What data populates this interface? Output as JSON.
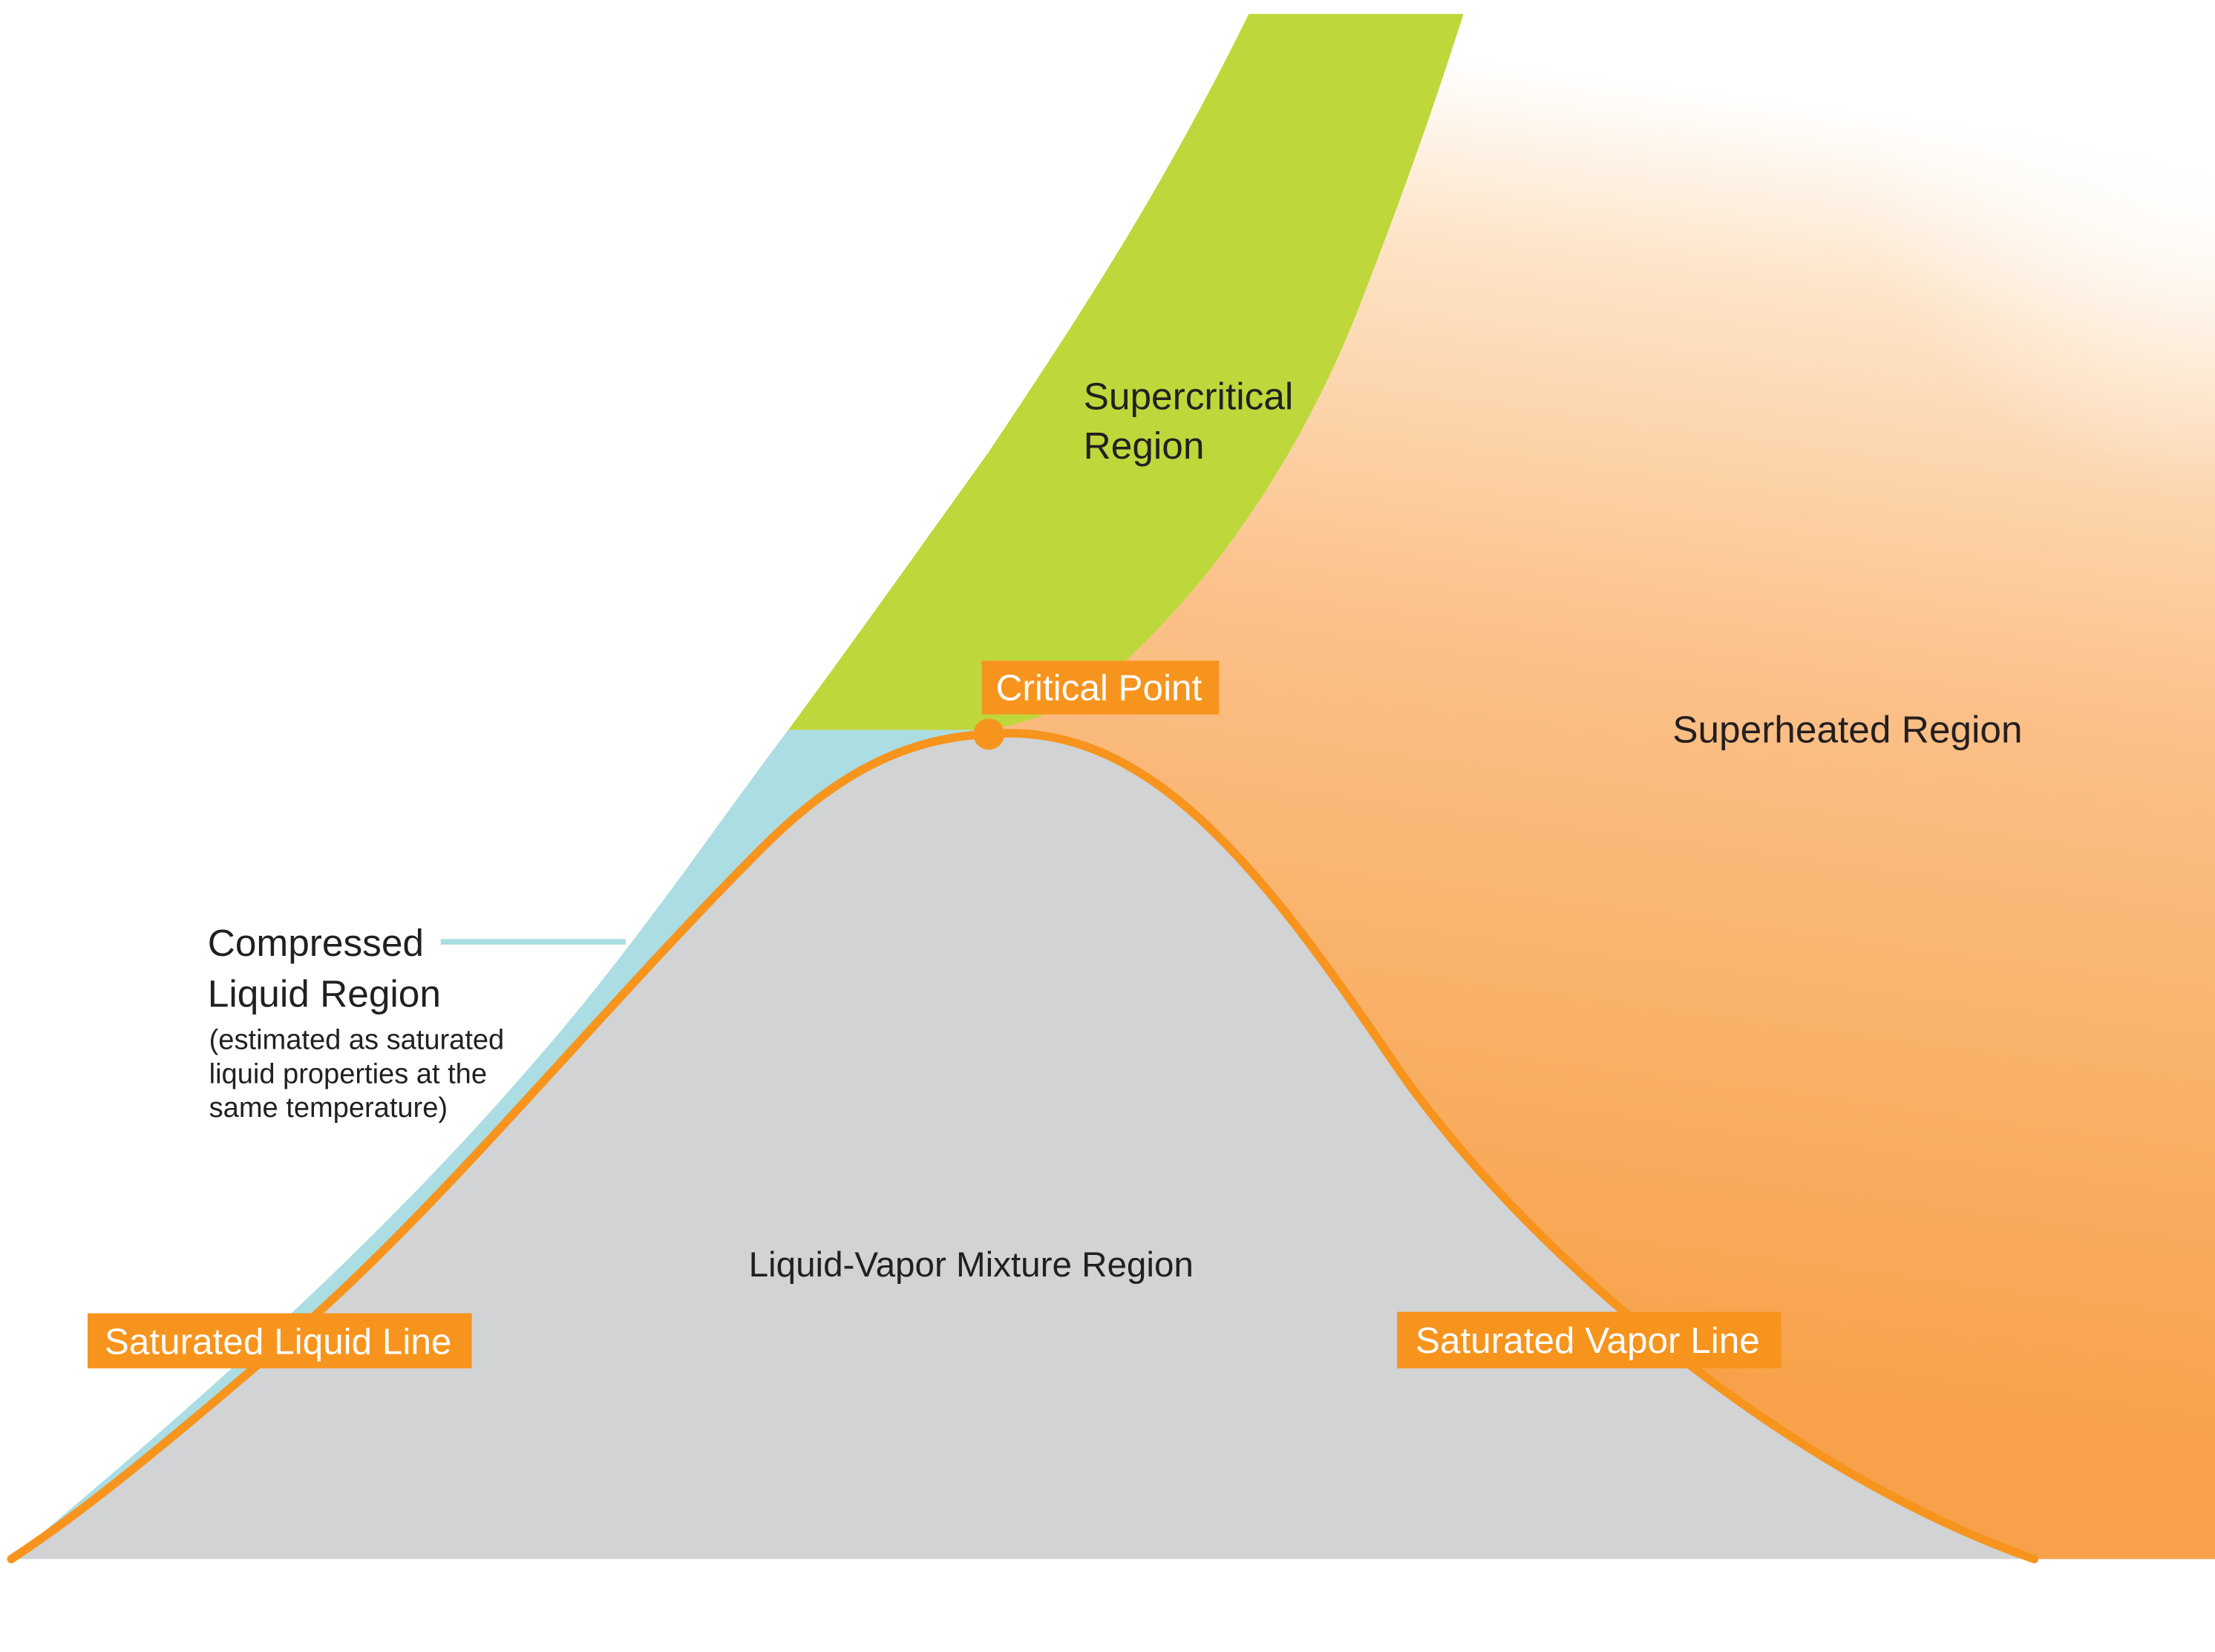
{
  "regions": {
    "supercritical": [
      "Supercritical",
      "Region"
    ],
    "superheated": "Superheated Region",
    "mixture": "Liquid-Vapor Mixture Region",
    "compressed_title": [
      "Compressed",
      "Liquid Region"
    ],
    "compressed_note": [
      "(estimated as saturated",
      "liquid properties at the",
      "same temperature)"
    ]
  },
  "callouts": {
    "critical_point": "Critical Point",
    "saturated_liquid_line": "Saturated Liquid Line",
    "saturated_vapor_line": "Saturated Vapor Line"
  },
  "colors": {
    "supercritical_green": "#bed73b",
    "compressed_liquid_blue": "#abdde3",
    "mixture_gray": "#d1d3d4",
    "saturation_orange": "#f7941d",
    "superheated_orange_dark": "#f7a24a",
    "superheated_orange_light": "#fde3c6"
  }
}
